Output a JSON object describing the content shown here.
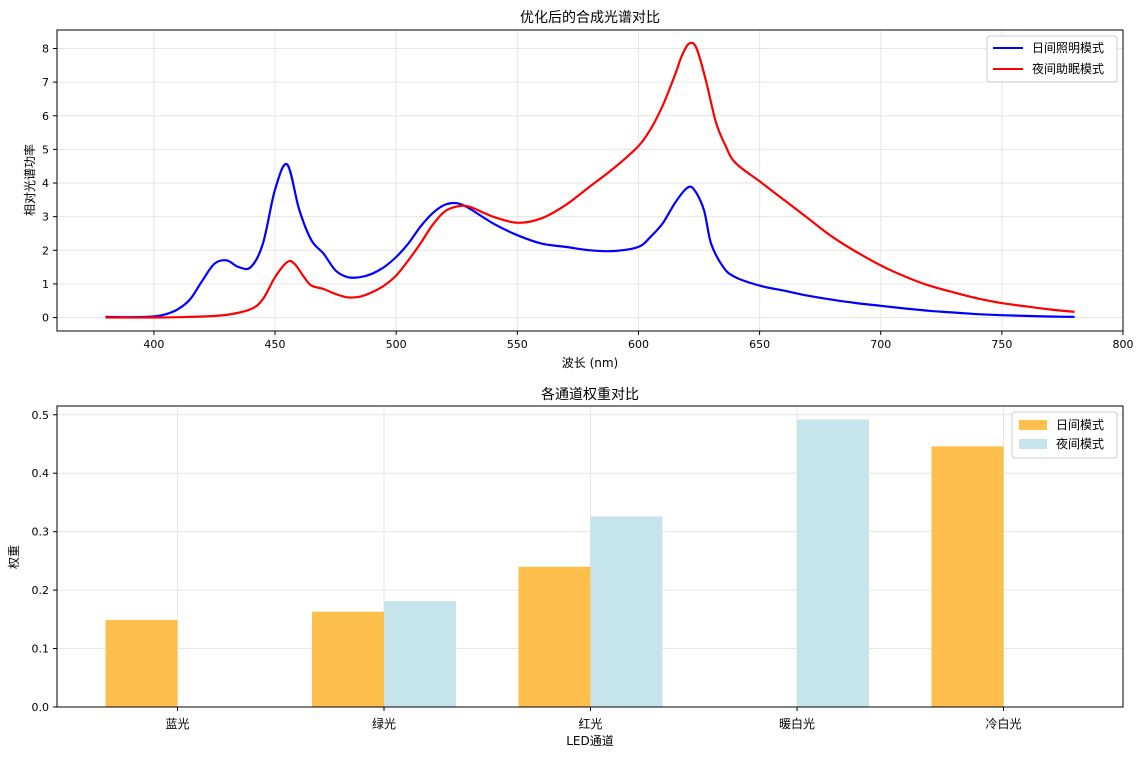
{
  "chart_data": [
    {
      "type": "line",
      "title": "优化后的合成光谱对比",
      "xlabel": "波长 (nm)",
      "ylabel": "相对光谱功率",
      "xlim": [
        360,
        800
      ],
      "ylim": [
        -0.4,
        8.55
      ],
      "xticks": [
        "400",
        "450",
        "500",
        "550",
        "600",
        "650",
        "700",
        "750",
        "800"
      ],
      "yticks": [
        "0",
        "1",
        "2",
        "3",
        "4",
        "5",
        "6",
        "7",
        "8"
      ],
      "grid": true,
      "legend_position": "top-right",
      "series": [
        {
          "name": "日间照明模式",
          "color": "#0000ff",
          "x": [
            380,
            390,
            400,
            405,
            410,
            415,
            420,
            425,
            430,
            435,
            440,
            445,
            450,
            455,
            460,
            465,
            470,
            475,
            480,
            485,
            490,
            495,
            500,
            505,
            510,
            515,
            520,
            525,
            530,
            540,
            550,
            560,
            570,
            580,
            590,
            600,
            605,
            610,
            615,
            620,
            623,
            627,
            630,
            635,
            640,
            650,
            660,
            670,
            680,
            690,
            700,
            710,
            720,
            730,
            740,
            750,
            760,
            770,
            780
          ],
          "y": [
            0.02,
            0.01,
            0.03,
            0.1,
            0.25,
            0.55,
            1.1,
            1.6,
            1.7,
            1.5,
            1.5,
            2.2,
            3.8,
            4.55,
            3.2,
            2.3,
            1.9,
            1.4,
            1.2,
            1.2,
            1.3,
            1.5,
            1.8,
            2.2,
            2.7,
            3.1,
            3.35,
            3.4,
            3.25,
            2.8,
            2.45,
            2.2,
            2.1,
            2.0,
            1.98,
            2.1,
            2.4,
            2.8,
            3.4,
            3.85,
            3.8,
            3.2,
            2.2,
            1.5,
            1.2,
            0.95,
            0.8,
            0.65,
            0.53,
            0.43,
            0.35,
            0.27,
            0.2,
            0.15,
            0.1,
            0.07,
            0.05,
            0.03,
            0.02
          ]
        },
        {
          "name": "夜间助眠模式",
          "color": "#ff0000",
          "x": [
            380,
            400,
            410,
            420,
            430,
            440,
            445,
            450,
            455,
            458,
            462,
            465,
            470,
            475,
            480,
            485,
            490,
            495,
            500,
            505,
            510,
            515,
            520,
            525,
            530,
            540,
            550,
            560,
            570,
            580,
            590,
            600,
            605,
            610,
            615,
            618,
            621,
            624,
            628,
            632,
            636,
            640,
            650,
            660,
            670,
            680,
            690,
            700,
            710,
            720,
            730,
            740,
            750,
            760,
            770,
            780
          ],
          "y": [
            0.0,
            0.0,
            0.01,
            0.03,
            0.08,
            0.25,
            0.55,
            1.2,
            1.65,
            1.6,
            1.2,
            0.95,
            0.85,
            0.7,
            0.6,
            0.62,
            0.75,
            0.95,
            1.25,
            1.7,
            2.2,
            2.75,
            3.15,
            3.3,
            3.3,
            3.0,
            2.82,
            2.95,
            3.35,
            3.9,
            4.45,
            5.1,
            5.6,
            6.3,
            7.2,
            7.8,
            8.15,
            8.0,
            7.0,
            5.8,
            5.1,
            4.6,
            4.05,
            3.5,
            2.95,
            2.4,
            1.95,
            1.55,
            1.22,
            0.95,
            0.75,
            0.57,
            0.43,
            0.33,
            0.24,
            0.17
          ]
        }
      ]
    },
    {
      "type": "bar",
      "title": "各通道权重对比",
      "xlabel": "LED通道",
      "ylabel": "权重",
      "categories": [
        "蓝光",
        "绿光",
        "红光",
        "暖白光",
        "冷白光"
      ],
      "ylim": [
        0,
        0.515
      ],
      "yticks": [
        "0.0",
        "0.1",
        "0.2",
        "0.3",
        "0.4",
        "0.5"
      ],
      "grid": true,
      "legend_position": "top-right",
      "series": [
        {
          "name": "日间模式",
          "color": "#ffbf4d",
          "values": [
            0.149,
            0.163,
            0.24,
            0.0,
            0.446
          ]
        },
        {
          "name": "夜间模式",
          "color": "#c5e4ec",
          "values": [
            0.0,
            0.181,
            0.326,
            0.492,
            0.0
          ]
        }
      ]
    }
  ]
}
